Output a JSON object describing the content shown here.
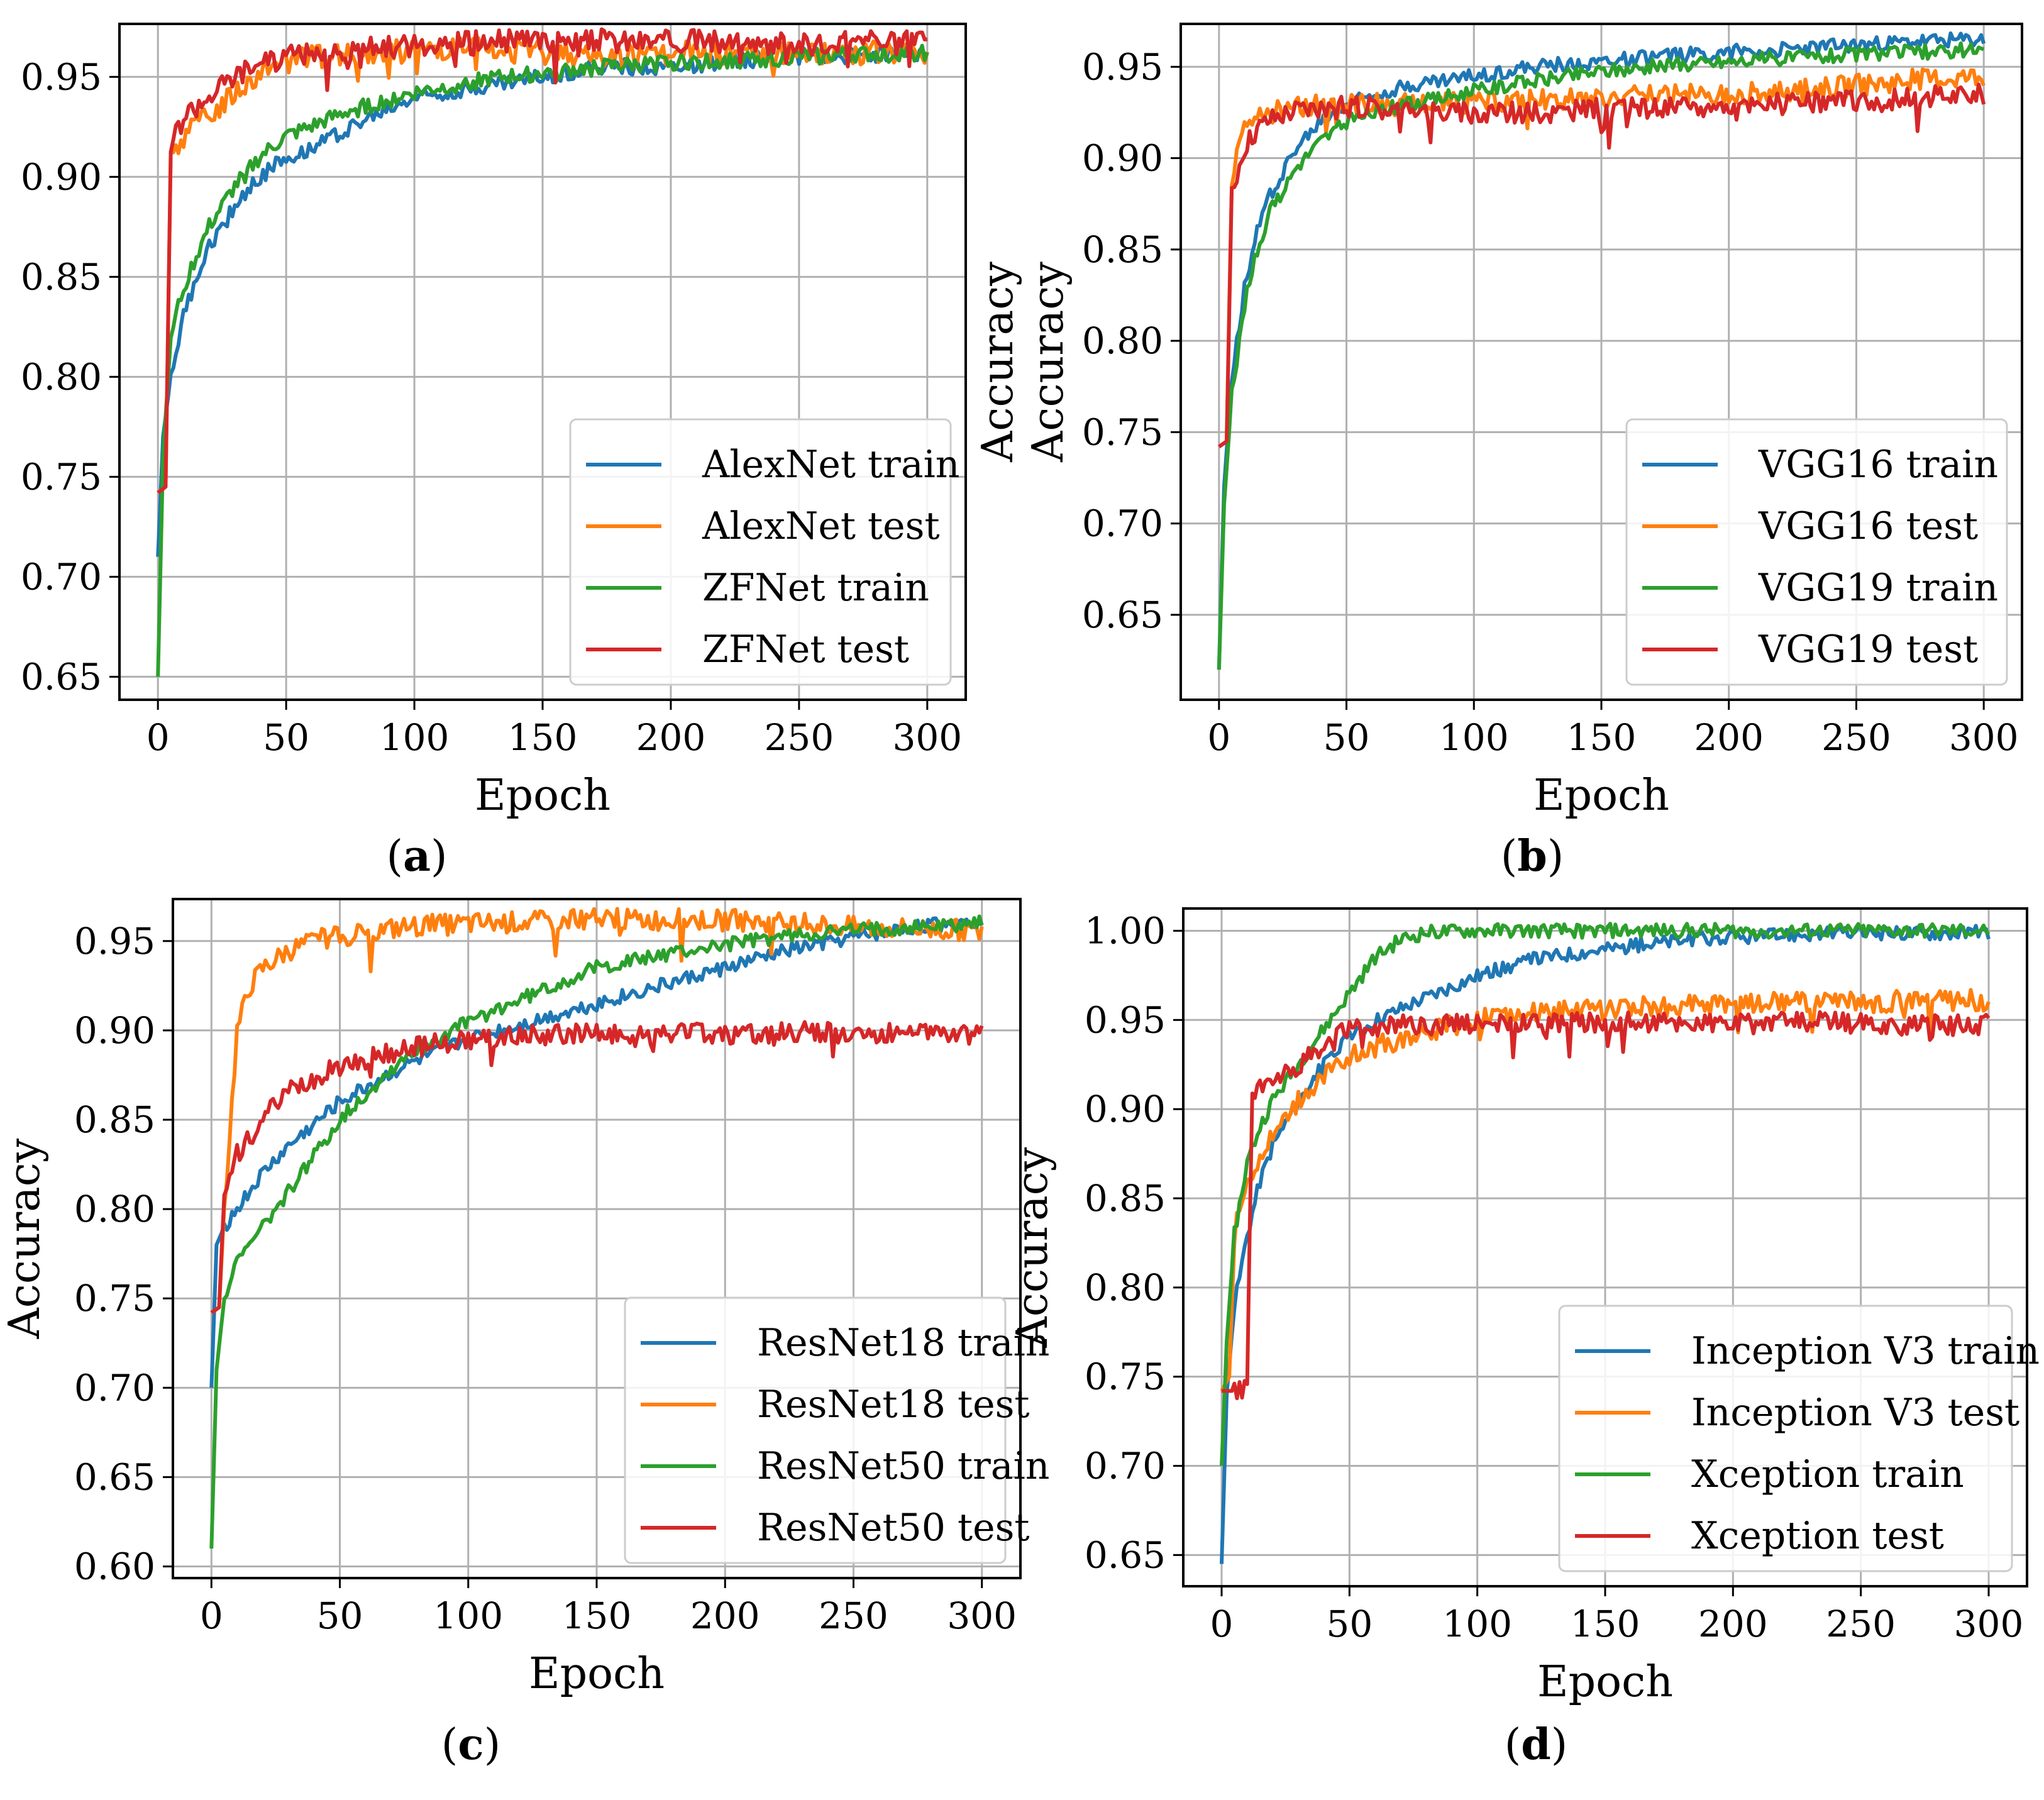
{
  "colors": {
    "blue": "#1f77b4",
    "orange": "#ff7f0e",
    "green": "#2ca02c",
    "red": "#d62728",
    "grid": "#b0b0b0"
  },
  "chart_data": [
    {
      "id": "a",
      "type": "line",
      "caption": [
        "(",
        "a",
        ")"
      ],
      "xlabel": "Epoch",
      "ylabel": "",
      "xlim": [
        -15,
        315
      ],
      "ylim": [
        0.6385,
        0.9765
      ],
      "xticks": [
        0,
        50,
        100,
        150,
        200,
        250,
        300
      ],
      "xtick_labels": [
        "0",
        "50",
        "100",
        "150",
        "200",
        "250",
        "300"
      ],
      "yticks": [
        0.65,
        0.7,
        0.75,
        0.8,
        0.85,
        0.9,
        0.95
      ],
      "ytick_labels": [
        "0.65",
        "0.70",
        "0.75",
        "0.80",
        "0.85",
        "0.90",
        "0.95"
      ],
      "grid": true,
      "legend": "bottom-right",
      "series": [
        {
          "name": "AlexNet train",
          "color": "blue",
          "x": [
            0,
            2,
            5,
            10,
            15,
            20,
            30,
            40,
            50,
            60,
            75,
            100,
            125,
            150,
            175,
            200,
            225,
            250,
            275,
            300
          ],
          "y": [
            0.71,
            0.77,
            0.8,
            0.83,
            0.85,
            0.865,
            0.885,
            0.9,
            0.91,
            0.915,
            0.925,
            0.94,
            0.945,
            0.95,
            0.955,
            0.955,
            0.958,
            0.96,
            0.961,
            0.962
          ]
        },
        {
          "name": "AlexNet test",
          "color": "orange",
          "x": [
            0,
            3,
            5,
            10,
            20,
            30,
            40,
            50,
            75,
            100,
            125,
            150,
            175,
            200,
            225,
            250,
            275,
            300
          ],
          "y": [
            0.742,
            0.745,
            0.912,
            0.92,
            0.93,
            0.942,
            0.952,
            0.958,
            0.962,
            0.963,
            0.964,
            0.962,
            0.96,
            0.962,
            0.962,
            0.962,
            0.962,
            0.962
          ]
        },
        {
          "name": "ZFNet train",
          "color": "green",
          "x": [
            0,
            2,
            5,
            10,
            15,
            20,
            30,
            40,
            50,
            60,
            75,
            100,
            125,
            150,
            175,
            200,
            225,
            250,
            275,
            300
          ],
          "y": [
            0.65,
            0.76,
            0.82,
            0.845,
            0.86,
            0.875,
            0.895,
            0.91,
            0.92,
            0.925,
            0.933,
            0.942,
            0.948,
            0.952,
            0.955,
            0.957,
            0.958,
            0.96,
            0.961,
            0.962
          ]
        },
        {
          "name": "ZFNet test",
          "color": "red",
          "x": [
            0,
            3,
            5,
            10,
            20,
            30,
            40,
            50,
            75,
            100,
            125,
            150,
            175,
            200,
            225,
            250,
            275,
            300
          ],
          "y": [
            0.742,
            0.745,
            0.915,
            0.93,
            0.94,
            0.95,
            0.956,
            0.96,
            0.963,
            0.966,
            0.967,
            0.968,
            0.968,
            0.968,
            0.967,
            0.967,
            0.967,
            0.967
          ]
        }
      ]
    },
    {
      "id": "b",
      "type": "line",
      "caption": [
        "(",
        "b",
        ")"
      ],
      "xlabel": "Epoch",
      "ylabel": "Accuracy",
      "ylabel_duplicate": "Accuracy",
      "xlim": [
        -15,
        315
      ],
      "ylim": [
        0.6035,
        0.9735
      ],
      "xticks": [
        0,
        50,
        100,
        150,
        200,
        250,
        300
      ],
      "xtick_labels": [
        "0",
        "50",
        "100",
        "150",
        "200",
        "250",
        "300"
      ],
      "yticks": [
        0.65,
        0.7,
        0.75,
        0.8,
        0.85,
        0.9,
        0.95
      ],
      "ytick_labels": [
        "0.65",
        "0.70",
        "0.75",
        "0.80",
        "0.85",
        "0.90",
        "0.95"
      ],
      "grid": true,
      "legend": "bottom-right",
      "series": [
        {
          "name": "VGG16 train",
          "color": "blue",
          "x": [
            0,
            2,
            5,
            10,
            15,
            20,
            30,
            40,
            50,
            60,
            75,
            100,
            125,
            150,
            175,
            200,
            225,
            250,
            275,
            300
          ],
          "y": [
            0.62,
            0.72,
            0.78,
            0.83,
            0.86,
            0.88,
            0.905,
            0.92,
            0.93,
            0.935,
            0.94,
            0.945,
            0.95,
            0.953,
            0.956,
            0.958,
            0.96,
            0.962,
            0.964,
            0.965
          ]
        },
        {
          "name": "VGG16 test",
          "color": "orange",
          "x": [
            0,
            3,
            5,
            10,
            15,
            20,
            30,
            50,
            75,
            100,
            125,
            150,
            175,
            200,
            225,
            250,
            275,
            300
          ],
          "y": [
            0.742,
            0.745,
            0.89,
            0.915,
            0.922,
            0.925,
            0.928,
            0.93,
            0.93,
            0.93,
            0.932,
            0.933,
            0.934,
            0.935,
            0.937,
            0.94,
            0.943,
            0.945
          ]
        },
        {
          "name": "VGG19 train",
          "color": "green",
          "x": [
            0,
            2,
            5,
            10,
            15,
            20,
            30,
            40,
            50,
            60,
            75,
            100,
            125,
            150,
            175,
            200,
            225,
            250,
            275,
            300
          ],
          "y": [
            0.62,
            0.71,
            0.77,
            0.82,
            0.85,
            0.87,
            0.895,
            0.91,
            0.92,
            0.925,
            0.93,
            0.937,
            0.943,
            0.948,
            0.951,
            0.953,
            0.955,
            0.957,
            0.958,
            0.96
          ]
        },
        {
          "name": "VGG19 test",
          "color": "red",
          "x": [
            0,
            3,
            5,
            10,
            15,
            20,
            30,
            50,
            75,
            100,
            125,
            150,
            175,
            200,
            225,
            250,
            275,
            300
          ],
          "y": [
            0.742,
            0.745,
            0.88,
            0.905,
            0.915,
            0.92,
            0.925,
            0.928,
            0.927,
            0.925,
            0.925,
            0.927,
            0.928,
            0.928,
            0.93,
            0.932,
            0.933,
            0.935
          ]
        }
      ]
    },
    {
      "id": "c",
      "type": "line",
      "caption": [
        "(",
        "c",
        ")"
      ],
      "xlabel": "Epoch",
      "ylabel": "Accuracy",
      "xlim": [
        -15,
        315
      ],
      "ylim": [
        0.5935,
        0.9735
      ],
      "xticks": [
        0,
        50,
        100,
        150,
        200,
        250,
        300
      ],
      "xtick_labels": [
        "0",
        "50",
        "100",
        "150",
        "200",
        "250",
        "300"
      ],
      "yticks": [
        0.6,
        0.65,
        0.7,
        0.75,
        0.8,
        0.85,
        0.9,
        0.95
      ],
      "ytick_labels": [
        "0.60",
        "0.65",
        "0.70",
        "0.75",
        "0.80",
        "0.85",
        "0.90",
        "0.95"
      ],
      "grid": true,
      "legend": "bottom-right",
      "series": [
        {
          "name": "ResNet18 train",
          "color": "blue",
          "x": [
            0,
            2,
            5,
            10,
            20,
            30,
            50,
            75,
            100,
            125,
            150,
            175,
            200,
            225,
            250,
            275,
            300
          ],
          "y": [
            0.7,
            0.78,
            0.79,
            0.8,
            0.82,
            0.835,
            0.86,
            0.88,
            0.895,
            0.905,
            0.915,
            0.925,
            0.935,
            0.945,
            0.952,
            0.958,
            0.962
          ]
        },
        {
          "name": "ResNet18 test",
          "color": "orange",
          "x": [
            0,
            3,
            5,
            8,
            10,
            15,
            20,
            30,
            40,
            50,
            75,
            100,
            125,
            150,
            175,
            200,
            225,
            250,
            275,
            300
          ],
          "y": [
            0.742,
            0.745,
            0.8,
            0.86,
            0.9,
            0.925,
            0.935,
            0.945,
            0.95,
            0.953,
            0.958,
            0.96,
            0.961,
            0.962,
            0.962,
            0.962,
            0.96,
            0.958,
            0.957,
            0.956
          ]
        },
        {
          "name": "ResNet50 train",
          "color": "green",
          "x": [
            0,
            2,
            5,
            10,
            20,
            30,
            50,
            75,
            100,
            125,
            150,
            175,
            200,
            225,
            250,
            275,
            300
          ],
          "y": [
            0.61,
            0.71,
            0.75,
            0.77,
            0.79,
            0.81,
            0.85,
            0.885,
            0.905,
            0.92,
            0.935,
            0.942,
            0.948,
            0.953,
            0.956,
            0.958,
            0.96
          ]
        },
        {
          "name": "ResNet50 test",
          "color": "red",
          "x": [
            0,
            3,
            5,
            10,
            20,
            30,
            50,
            75,
            100,
            125,
            150,
            175,
            200,
            225,
            250,
            275,
            300
          ],
          "y": [
            0.742,
            0.745,
            0.81,
            0.83,
            0.85,
            0.865,
            0.88,
            0.89,
            0.895,
            0.897,
            0.898,
            0.898,
            0.898,
            0.899,
            0.899,
            0.898,
            0.897
          ]
        }
      ]
    },
    {
      "id": "d",
      "type": "line",
      "caption": [
        "(",
        "d",
        ")"
      ],
      "xlabel": "Epoch",
      "ylabel": "Accuracy",
      "xlim": [
        -15,
        315
      ],
      "ylim": [
        0.6325,
        1.0125
      ],
      "xticks": [
        0,
        50,
        100,
        150,
        200,
        250,
        300
      ],
      "xtick_labels": [
        "0",
        "50",
        "100",
        "150",
        "200",
        "250",
        "300"
      ],
      "yticks": [
        0.65,
        0.7,
        0.75,
        0.8,
        0.85,
        0.9,
        0.95,
        1.0
      ],
      "ytick_labels": [
        "0.65",
        "0.70",
        "0.75",
        "0.80",
        "0.85",
        "0.90",
        "0.95",
        "1.00"
      ],
      "grid": true,
      "legend": "bottom-right",
      "series": [
        {
          "name": "Inception V3 train",
          "color": "blue",
          "x": [
            0,
            2,
            5,
            10,
            15,
            20,
            30,
            40,
            50,
            60,
            75,
            100,
            125,
            150,
            175,
            200,
            225,
            250,
            275,
            300
          ],
          "y": [
            0.645,
            0.74,
            0.79,
            0.83,
            0.86,
            0.88,
            0.905,
            0.925,
            0.94,
            0.95,
            0.96,
            0.975,
            0.985,
            0.99,
            0.994,
            0.996,
            0.998,
            0.999,
            0.999,
            0.999
          ]
        },
        {
          "name": "Inception V3 test",
          "color": "orange",
          "x": [
            0,
            3,
            5,
            10,
            20,
            30,
            40,
            50,
            75,
            100,
            125,
            150,
            175,
            200,
            225,
            250,
            275,
            300
          ],
          "y": [
            0.742,
            0.75,
            0.83,
            0.86,
            0.885,
            0.905,
            0.92,
            0.93,
            0.942,
            0.95,
            0.954,
            0.956,
            0.958,
            0.959,
            0.96,
            0.96,
            0.961,
            0.961
          ]
        },
        {
          "name": "Xception train",
          "color": "green",
          "x": [
            0,
            2,
            5,
            10,
            15,
            20,
            30,
            40,
            50,
            60,
            70,
            80,
            100,
            150,
            200,
            250,
            300
          ],
          "y": [
            0.7,
            0.77,
            0.83,
            0.87,
            0.89,
            0.905,
            0.925,
            0.945,
            0.965,
            0.985,
            0.995,
            0.999,
            1.0,
            1.0,
            1.0,
            1.0,
            1.0
          ]
        },
        {
          "name": "Xception test",
          "color": "red",
          "x": [
            0,
            5,
            10,
            12,
            20,
            30,
            40,
            50,
            75,
            100,
            125,
            150,
            175,
            200,
            225,
            250,
            275,
            300
          ],
          "y": [
            0.742,
            0.742,
            0.742,
            0.91,
            0.915,
            0.925,
            0.935,
            0.945,
            0.947,
            0.948,
            0.948,
            0.949,
            0.949,
            0.948,
            0.949,
            0.948,
            0.947,
            0.947
          ]
        }
      ]
    }
  ]
}
